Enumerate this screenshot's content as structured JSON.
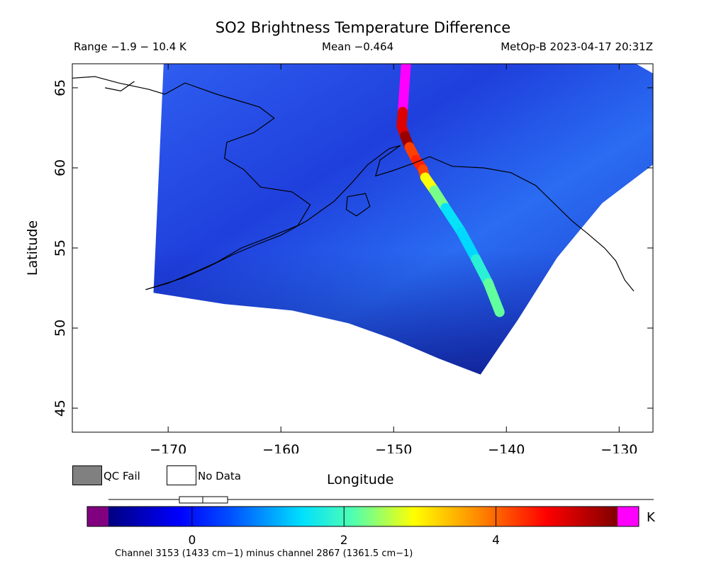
{
  "header": {
    "title": "SO2 Brightness Temperature Difference",
    "range": "Range −1.9 − 10.4 K",
    "mean": "Mean −0.464",
    "satellite": "MetOp-B 2023-04-17 20:31Z"
  },
  "legend": {
    "qc_fail": "QC Fail",
    "no_data": "No Data"
  },
  "colorbar": {
    "unit": "K",
    "ticks": [
      {
        "value": 0,
        "label": "0"
      },
      {
        "value": 2,
        "label": "2"
      },
      {
        "value": 4,
        "label": "4"
      }
    ],
    "min": -1.1,
    "max": 5.6,
    "under_color": "#800080",
    "over_color": "#ff00ff",
    "footnote": "Channel 3153 (1433 cm−1) minus channel 2867 (1361.5 cm−1)"
  },
  "chart_data": {
    "type": "heatmap",
    "title": "SO2 Brightness Temperature Difference",
    "xlabel": "Longitude",
    "ylabel": "Latitude",
    "xlim": [
      -178.5,
      -127
    ],
    "ylim": [
      43.5,
      66.5
    ],
    "x_ticks": [
      {
        "value": -170,
        "label": "−170"
      },
      {
        "value": -160,
        "label": "−160"
      },
      {
        "value": -150,
        "label": "−150"
      },
      {
        "value": -140,
        "label": "−140"
      },
      {
        "value": -130,
        "label": "−130"
      }
    ],
    "y_ticks": [
      {
        "value": 45,
        "label": "45"
      },
      {
        "value": 50,
        "label": "50"
      },
      {
        "value": 55,
        "label": "55"
      },
      {
        "value": 60,
        "label": "60"
      },
      {
        "value": 65,
        "label": "65"
      }
    ],
    "swath_outline": [
      [
        -170.4,
        66.5
      ],
      [
        -171.3,
        52.2
      ],
      [
        -165,
        51.5
      ],
      [
        -159,
        51.1
      ],
      [
        -154,
        50.3
      ],
      [
        -150,
        49.3
      ],
      [
        -146,
        48.1
      ],
      [
        -142.3,
        47.1
      ],
      [
        -139,
        50.5
      ],
      [
        -135.5,
        54.4
      ],
      [
        -131.5,
        57.8
      ],
      [
        -127,
        60.2
      ],
      [
        -127,
        65.9
      ],
      [
        -128.5,
        66.5
      ]
    ],
    "plume": [
      [
        -148.9,
        66.5,
        5.8
      ],
      [
        -149.0,
        65.5,
        5.8
      ],
      [
        -149.1,
        64.5,
        5.8
      ],
      [
        -149.2,
        63.5,
        5.8
      ],
      [
        -149.3,
        62.6,
        4.0
      ],
      [
        -149.0,
        62.0,
        5.8
      ],
      [
        -148.6,
        61.3,
        5.0
      ],
      [
        -148.0,
        60.5,
        3.5
      ],
      [
        -147.4,
        59.9,
        5.4
      ],
      [
        -147.2,
        59.4,
        3.0
      ],
      [
        -146.4,
        58.6,
        2.8
      ],
      [
        -145.4,
        57.5,
        1.8
      ],
      [
        -144.0,
        56.0,
        1.2
      ],
      [
        -142.7,
        54.3,
        1.6
      ],
      [
        -141.6,
        52.8,
        2.0
      ],
      [
        -140.6,
        51.0,
        2.4
      ]
    ],
    "coastlines": [
      [
        [
          -178.5,
          65.6
        ],
        [
          -176.5,
          65.7
        ],
        [
          -174.4,
          65.3
        ],
        [
          -171.7,
          64.9
        ],
        [
          -170.3,
          64.6
        ],
        [
          -168.5,
          65.3
        ],
        [
          -165.7,
          64.6
        ],
        [
          -163.8,
          64.2
        ],
        [
          -161.9,
          63.8
        ],
        [
          -160.6,
          63.1
        ],
        [
          -162.4,
          62.2
        ],
        [
          -164.8,
          61.6
        ],
        [
          -165.0,
          60.6
        ],
        [
          -163.3,
          59.9
        ],
        [
          -161.8,
          58.8
        ],
        [
          -159.0,
          58.5
        ],
        [
          -157.4,
          57.7
        ],
        [
          -158.5,
          56.4
        ],
        [
          -161.3,
          55.6
        ],
        [
          -163.5,
          55.0
        ],
        [
          -165.7,
          54.1
        ],
        [
          -167.6,
          53.5
        ],
        [
          -170.0,
          52.8
        ],
        [
          -172.0,
          52.4
        ]
      ],
      [
        [
          -172.0,
          52.4
        ],
        [
          -168.8,
          53.1
        ],
        [
          -166.5,
          53.8
        ],
        [
          -164.2,
          54.6
        ],
        [
          -162.2,
          55.2
        ],
        [
          -160.0,
          55.8
        ],
        [
          -157.7,
          56.7
        ],
        [
          -155.3,
          57.9
        ],
        [
          -153.8,
          59.0
        ],
        [
          -152.3,
          60.2
        ],
        [
          -150.4,
          61.2
        ],
        [
          -149.4,
          61.4
        ],
        [
          -151.2,
          60.5
        ],
        [
          -151.6,
          59.5
        ],
        [
          -150.2,
          59.8
        ],
        [
          -148.2,
          60.3
        ],
        [
          -146.8,
          60.7
        ],
        [
          -144.8,
          60.1
        ],
        [
          -142.0,
          60.0
        ],
        [
          -139.6,
          59.7
        ],
        [
          -137.4,
          58.9
        ],
        [
          -135.8,
          57.8
        ],
        [
          -134.2,
          56.7
        ],
        [
          -132.8,
          55.9
        ],
        [
          -131.3,
          55.0
        ],
        [
          -130.3,
          54.2
        ],
        [
          -129.5,
          53.0
        ],
        [
          -128.7,
          52.3
        ]
      ],
      [
        [
          -154.1,
          58.2
        ],
        [
          -152.5,
          58.4
        ],
        [
          -152.1,
          57.6
        ],
        [
          -153.3,
          57.0
        ],
        [
          -154.2,
          57.4
        ],
        [
          -154.1,
          58.2
        ]
      ],
      [
        [
          -173.0,
          65.4
        ],
        [
          -174.2,
          64.8
        ],
        [
          -175.6,
          65.0
        ]
      ]
    ]
  }
}
